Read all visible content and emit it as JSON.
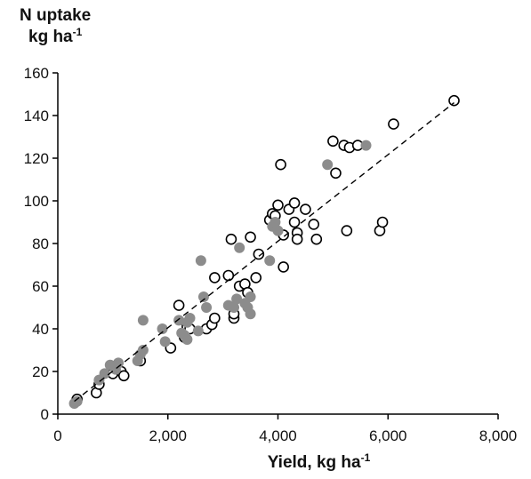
{
  "chart_data": {
    "type": "scatter",
    "title": "",
    "ylabel_main": "N uptake",
    "ylabel_unit": "kg ha",
    "ylabel_exp": "-1",
    "xlabel_main": "Yield, kg ha",
    "xlabel_exp": "-1",
    "xlim": [
      0,
      8000
    ],
    "ylim": [
      0,
      160
    ],
    "x_ticks": [
      0,
      2000,
      4000,
      6000,
      8000
    ],
    "x_tick_labels": [
      "0",
      "2,000",
      "4,000",
      "6,000",
      "8,000"
    ],
    "y_ticks": [
      0,
      20,
      40,
      60,
      80,
      100,
      120,
      140,
      160
    ],
    "y_tick_labels": [
      "0",
      "20",
      "40",
      "60",
      "80",
      "100",
      "120",
      "140",
      "160"
    ],
    "grid": false,
    "colors": {
      "open": "#000000",
      "filled": "#8c8c8c",
      "trend": "#000000"
    },
    "trendline": {
      "x": [
        300,
        7200
      ],
      "y": [
        6,
        146
      ]
    },
    "series": [
      {
        "marker": "open-circle",
        "points": [
          [
            350,
            7
          ],
          [
            700,
            10
          ],
          [
            750,
            14
          ],
          [
            1000,
            19
          ],
          [
            1150,
            20
          ],
          [
            1200,
            18
          ],
          [
            1500,
            25
          ],
          [
            2050,
            31
          ],
          [
            2200,
            51
          ],
          [
            2300,
            36
          ],
          [
            2350,
            41
          ],
          [
            2400,
            40
          ],
          [
            2700,
            40
          ],
          [
            2800,
            42
          ],
          [
            2850,
            45
          ],
          [
            2850,
            64
          ],
          [
            3100,
            65
          ],
          [
            3150,
            82
          ],
          [
            3200,
            45
          ],
          [
            3200,
            47
          ],
          [
            3300,
            60
          ],
          [
            3400,
            61
          ],
          [
            3450,
            57
          ],
          [
            3500,
            83
          ],
          [
            3600,
            64
          ],
          [
            3650,
            75
          ],
          [
            3850,
            91
          ],
          [
            3900,
            94
          ],
          [
            3950,
            93
          ],
          [
            4000,
            98
          ],
          [
            4050,
            117
          ],
          [
            4100,
            84
          ],
          [
            4100,
            69
          ],
          [
            4200,
            96
          ],
          [
            4300,
            99
          ],
          [
            4300,
            90
          ],
          [
            4350,
            85
          ],
          [
            4350,
            82
          ],
          [
            4500,
            96
          ],
          [
            4650,
            89
          ],
          [
            4700,
            82
          ],
          [
            5000,
            128
          ],
          [
            5050,
            113
          ],
          [
            5200,
            126
          ],
          [
            5250,
            86
          ],
          [
            5300,
            125
          ],
          [
            5450,
            126
          ],
          [
            5850,
            86
          ],
          [
            5900,
            90
          ],
          [
            6100,
            136
          ],
          [
            7200,
            147
          ]
        ]
      },
      {
        "marker": "filled-circle",
        "points": [
          [
            300,
            5
          ],
          [
            350,
            6
          ],
          [
            750,
            16
          ],
          [
            850,
            19
          ],
          [
            950,
            23
          ],
          [
            1050,
            21
          ],
          [
            1100,
            24
          ],
          [
            1450,
            25
          ],
          [
            1500,
            28
          ],
          [
            1550,
            30
          ],
          [
            1550,
            44
          ],
          [
            1900,
            40
          ],
          [
            1950,
            34
          ],
          [
            2200,
            44
          ],
          [
            2250,
            38
          ],
          [
            2300,
            37
          ],
          [
            2350,
            43
          ],
          [
            2350,
            35
          ],
          [
            2400,
            45
          ],
          [
            2550,
            39
          ],
          [
            2600,
            72
          ],
          [
            2650,
            55
          ],
          [
            2700,
            50
          ],
          [
            3100,
            51
          ],
          [
            3200,
            50
          ],
          [
            3250,
            54
          ],
          [
            3300,
            78
          ],
          [
            3400,
            52
          ],
          [
            3450,
            50
          ],
          [
            3500,
            55
          ],
          [
            3500,
            47
          ],
          [
            3850,
            72
          ],
          [
            3900,
            88
          ],
          [
            3950,
            90
          ],
          [
            4000,
            86
          ],
          [
            4900,
            117
          ],
          [
            5600,
            126
          ]
        ]
      }
    ]
  }
}
